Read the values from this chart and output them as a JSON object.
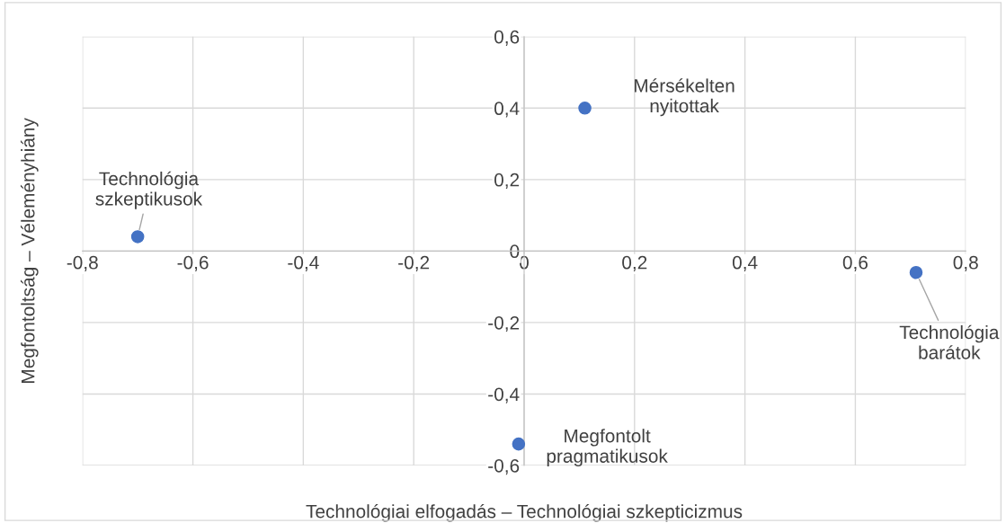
{
  "chart_data": {
    "type": "scatter",
    "xlabel": "Technológiai elfogadás – Technológiai szkepticizmus",
    "ylabel": "Megfontoltság – Véleményhiány",
    "series": [
      {
        "color": "#4472c4",
        "x": [
          -0.7,
          0.11,
          0.71,
          -0.01
        ],
        "values": [
          0.04,
          0.4,
          -0.06,
          -0.54
        ]
      }
    ],
    "marker": "circle",
    "xlim": [
      -0.8,
      0.8
    ],
    "ylim": [
      -0.6,
      0.6
    ],
    "xticks": [
      {
        "value": -0.8,
        "label": "-0,8"
      },
      {
        "value": -0.6,
        "label": "-0,6"
      },
      {
        "value": -0.4,
        "label": "-0,4"
      },
      {
        "value": -0.2,
        "label": "-0,2"
      },
      {
        "value": 0,
        "label": "0"
      },
      {
        "value": 0.2,
        "label": "0,2"
      },
      {
        "value": 0.4,
        "label": "0,4"
      },
      {
        "value": 0.6,
        "label": "0,6"
      },
      {
        "value": 0.8,
        "label": "0,8"
      }
    ],
    "yticks": [
      {
        "value": -0.6,
        "label": "-0,6"
      },
      {
        "value": -0.4,
        "label": "-0,4"
      },
      {
        "value": -0.2,
        "label": "-0,2"
      },
      {
        "value": 0,
        "label": "0"
      },
      {
        "value": 0.2,
        "label": "0,2"
      },
      {
        "value": 0.4,
        "label": "0,4"
      },
      {
        "value": 0.6,
        "label": "0,6"
      }
    ],
    "grid": true,
    "annotations": [
      {
        "text": "Technológia\nszkeptikusok",
        "x": -0.7,
        "y": 0.04
      },
      {
        "text": "Mérsékelten\nnyitottak",
        "x": 0.11,
        "y": 0.4
      },
      {
        "text": "Technológia\nbarátok",
        "x": 0.71,
        "y": -0.06
      },
      {
        "text": "Megfontolt\npragmatikusok",
        "x": -0.01,
        "y": -0.54
      }
    ]
  }
}
